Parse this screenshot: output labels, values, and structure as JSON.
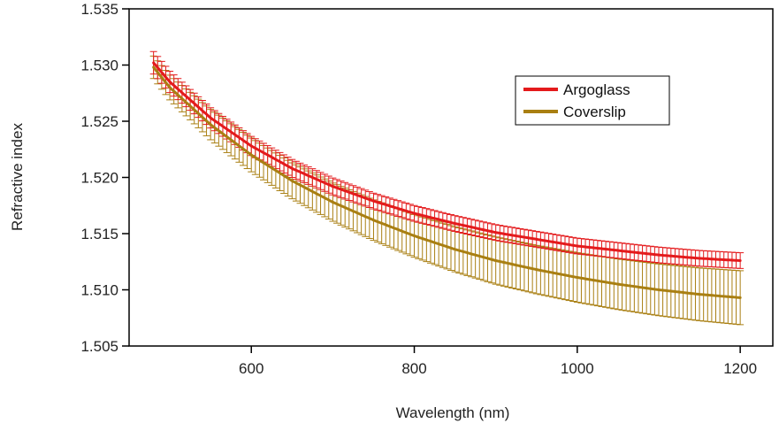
{
  "chart_data": {
    "type": "line",
    "title": "",
    "xlabel": "Wavelength (nm)",
    "ylabel": "Refractive index",
    "xlim": [
      450,
      1240
    ],
    "ylim": [
      1.505,
      1.535
    ],
    "xticks": [
      600,
      800,
      1000,
      1200
    ],
    "xtick_labels": [
      "600",
      "800",
      "1000",
      "1200"
    ],
    "yticks": [
      1.505,
      1.51,
      1.515,
      1.52,
      1.525,
      1.53,
      1.535
    ],
    "ytick_labels": [
      "1.505",
      "1.510",
      "1.515",
      "1.520",
      "1.525",
      "1.530",
      "1.535"
    ],
    "grid": false,
    "legend_position": "top-right",
    "error_bars": true,
    "x": [
      480,
      500,
      550,
      600,
      650,
      700,
      750,
      800,
      850,
      900,
      950,
      1000,
      1050,
      1100,
      1150,
      1200
    ],
    "series": [
      {
        "name": "Argoglass",
        "color": "#e41a1c",
        "values": [
          1.5302,
          1.5285,
          1.5253,
          1.5228,
          1.5208,
          1.5192,
          1.5179,
          1.5168,
          1.5159,
          1.5151,
          1.5145,
          1.5139,
          1.5135,
          1.5131,
          1.5128,
          1.5126
        ],
        "error": [
          1.0,
          0.95,
          0.9,
          0.85,
          0.8,
          0.75,
          0.7,
          0.7,
          0.7,
          0.7,
          0.7,
          0.7,
          0.7,
          0.7,
          0.7,
          0.7
        ]
      },
      {
        "name": "Coverslip",
        "color": "#a97f12",
        "values": [
          1.5298,
          1.528,
          1.5247,
          1.522,
          1.5197,
          1.5178,
          1.5162,
          1.5148,
          1.5136,
          1.5126,
          1.5118,
          1.5111,
          1.5105,
          1.51,
          1.5096,
          1.5093
        ],
        "error": [
          1.0,
          1.1,
          1.35,
          1.5,
          1.6,
          1.7,
          1.8,
          1.9,
          2.0,
          2.1,
          2.15,
          2.2,
          2.25,
          2.3,
          2.35,
          2.4
        ]
      }
    ],
    "error_unit": "x 0.001 refractive index units"
  }
}
